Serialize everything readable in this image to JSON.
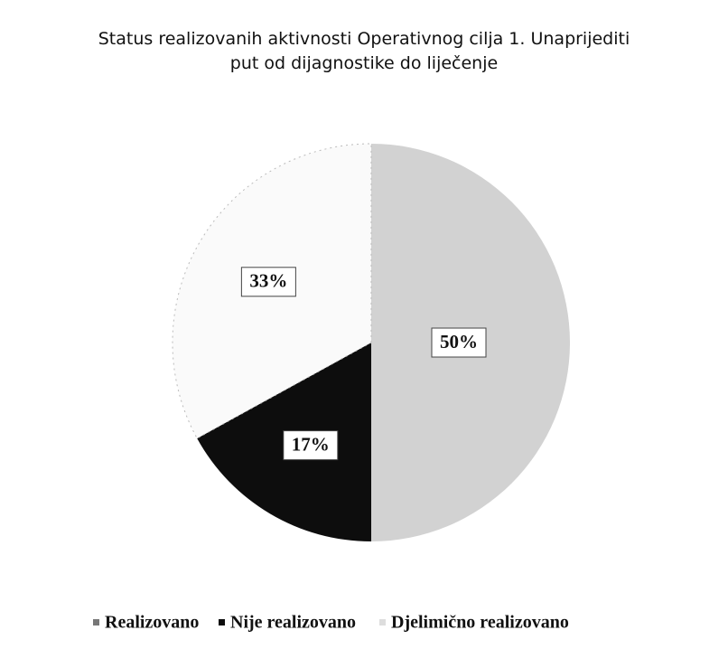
{
  "chart_data": {
    "type": "pie",
    "title": "Status realizovanih  aktivnosti Operativnog cilja 1. Unaprijediti put od dijagnostike do liječenje",
    "categories": [
      "Realizovano",
      "Nije realizovano",
      "Djelimično realizovano"
    ],
    "values": [
      50,
      17,
      33
    ],
    "value_labels": [
      "50%",
      "17%",
      "33%"
    ],
    "colors": [
      "#d2d2d2",
      "#0d0d0d",
      "#fafafa"
    ],
    "legend": "bottom"
  }
}
